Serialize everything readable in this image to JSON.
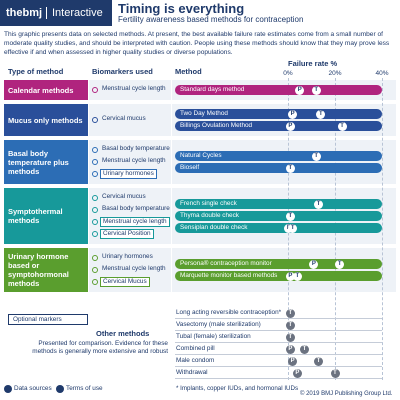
{
  "header": {
    "brand": "thebmj",
    "section": "Interactive",
    "title": "Timing is everything",
    "subtitle": "Fertility awareness based methods for contraception"
  },
  "intro": "This graphic presents data on selected methods. At present, the best available failure rate estimates come from a small number of moderate quality studies, and should be interpreted with caution. People using these methods should know that they may prove less effective if and when assessed in higher quality studies or diverse populations.",
  "columns": {
    "type": "Type of method",
    "biomarkers": "Biomarkers used",
    "method": "Method",
    "failure_rate": "Failure rate %"
  },
  "axis": {
    "xlim": [
      0,
      40
    ],
    "xticks": [
      {
        "value": 0,
        "label": "0%"
      },
      {
        "value": 20,
        "label": "20%"
      },
      {
        "value": 40,
        "label": "40%"
      }
    ],
    "grid": true
  },
  "markers": {
    "perfect": "P",
    "typical": "T"
  },
  "groups": [
    {
      "name": "Calendar methods",
      "color": "#b0247e",
      "biomarkers": [
        {
          "label": "Menstrual cycle length",
          "optional": false
        }
      ],
      "methods": [
        {
          "name": "Standard days method",
          "perfect": 5,
          "typical": 12
        }
      ]
    },
    {
      "name": "Mucus only methods",
      "color": "#2a4f9a",
      "biomarkers": [
        {
          "label": "Cervical mucus",
          "optional": false
        }
      ],
      "methods": [
        {
          "name": "Two Day Method",
          "perfect": 2,
          "typical": 14
        },
        {
          "name": "Billings Ovulation Method",
          "perfect": 1,
          "typical": 23
        }
      ]
    },
    {
      "name": "Basal body temperature plus methods",
      "color": "#2c6db5",
      "biomarkers": [
        {
          "label": "Basal body temperature",
          "optional": false
        },
        {
          "label": "Menstrual cycle length",
          "optional": false
        },
        {
          "label": "Urinary hormones",
          "optional": true
        }
      ],
      "methods": [
        {
          "name": "Natural Cycles",
          "perfect": null,
          "typical": 12
        },
        {
          "name": "Bioself",
          "perfect": null,
          "typical": 1
        }
      ]
    },
    {
      "name": "Symptothermal methods",
      "color": "#17999a",
      "biomarkers": [
        {
          "label": "Cervical mucus",
          "optional": false
        },
        {
          "label": "Basal body temperature",
          "optional": false
        },
        {
          "label": "Menstrual cycle length",
          "optional": true
        },
        {
          "label": "Cervical Position",
          "optional": true
        }
      ],
      "methods": [
        {
          "name": "French single check",
          "perfect": null,
          "typical": 13
        },
        {
          "name": "Thyma double check",
          "perfect": null,
          "typical": 1
        },
        {
          "name": "Sensiplan double check",
          "perfect": 0.4,
          "typical": 2
        }
      ]
    },
    {
      "name": "Urinary hormone based or symptohormonal methods",
      "color": "#5a9e2e",
      "biomarkers": [
        {
          "label": "Urinary hormones",
          "optional": false
        },
        {
          "label": "Menstrual cycle length",
          "optional": false
        },
        {
          "label": "Cervical Mucus",
          "optional": true
        }
      ],
      "methods": [
        {
          "name": "Persona® contraception monitor",
          "perfect": 11,
          "typical": 22
        },
        {
          "name": "Marquette monitor based methods",
          "perfect": 1,
          "typical": 4
        }
      ]
    }
  ],
  "optional_markers": "Optional markers",
  "other": {
    "title": "Other methods",
    "note": "Presented for comparison. Evidence for these methods is generally more extensive and robust",
    "methods": [
      {
        "name": "Long acting reversible contraception*",
        "perfect": null,
        "typical": 1
      },
      {
        "name": "Vasectomy (male sterilization)",
        "perfect": null,
        "typical": 1
      },
      {
        "name": "Tubal (female) sterilization",
        "perfect": null,
        "typical": 1
      },
      {
        "name": "Combined pill",
        "perfect": 1,
        "typical": 7
      },
      {
        "name": "Male condom",
        "perfect": 2,
        "typical": 13
      },
      {
        "name": "Withdrawal",
        "perfect": 4,
        "typical": 20
      }
    ]
  },
  "footer": {
    "data_sources": "Data sources",
    "terms": "Terms of use",
    "footnote": "* Implants, copper IUDs, and hormonal IUDs",
    "copyright": "© 2019 BMJ Publishing Group Ltd."
  }
}
